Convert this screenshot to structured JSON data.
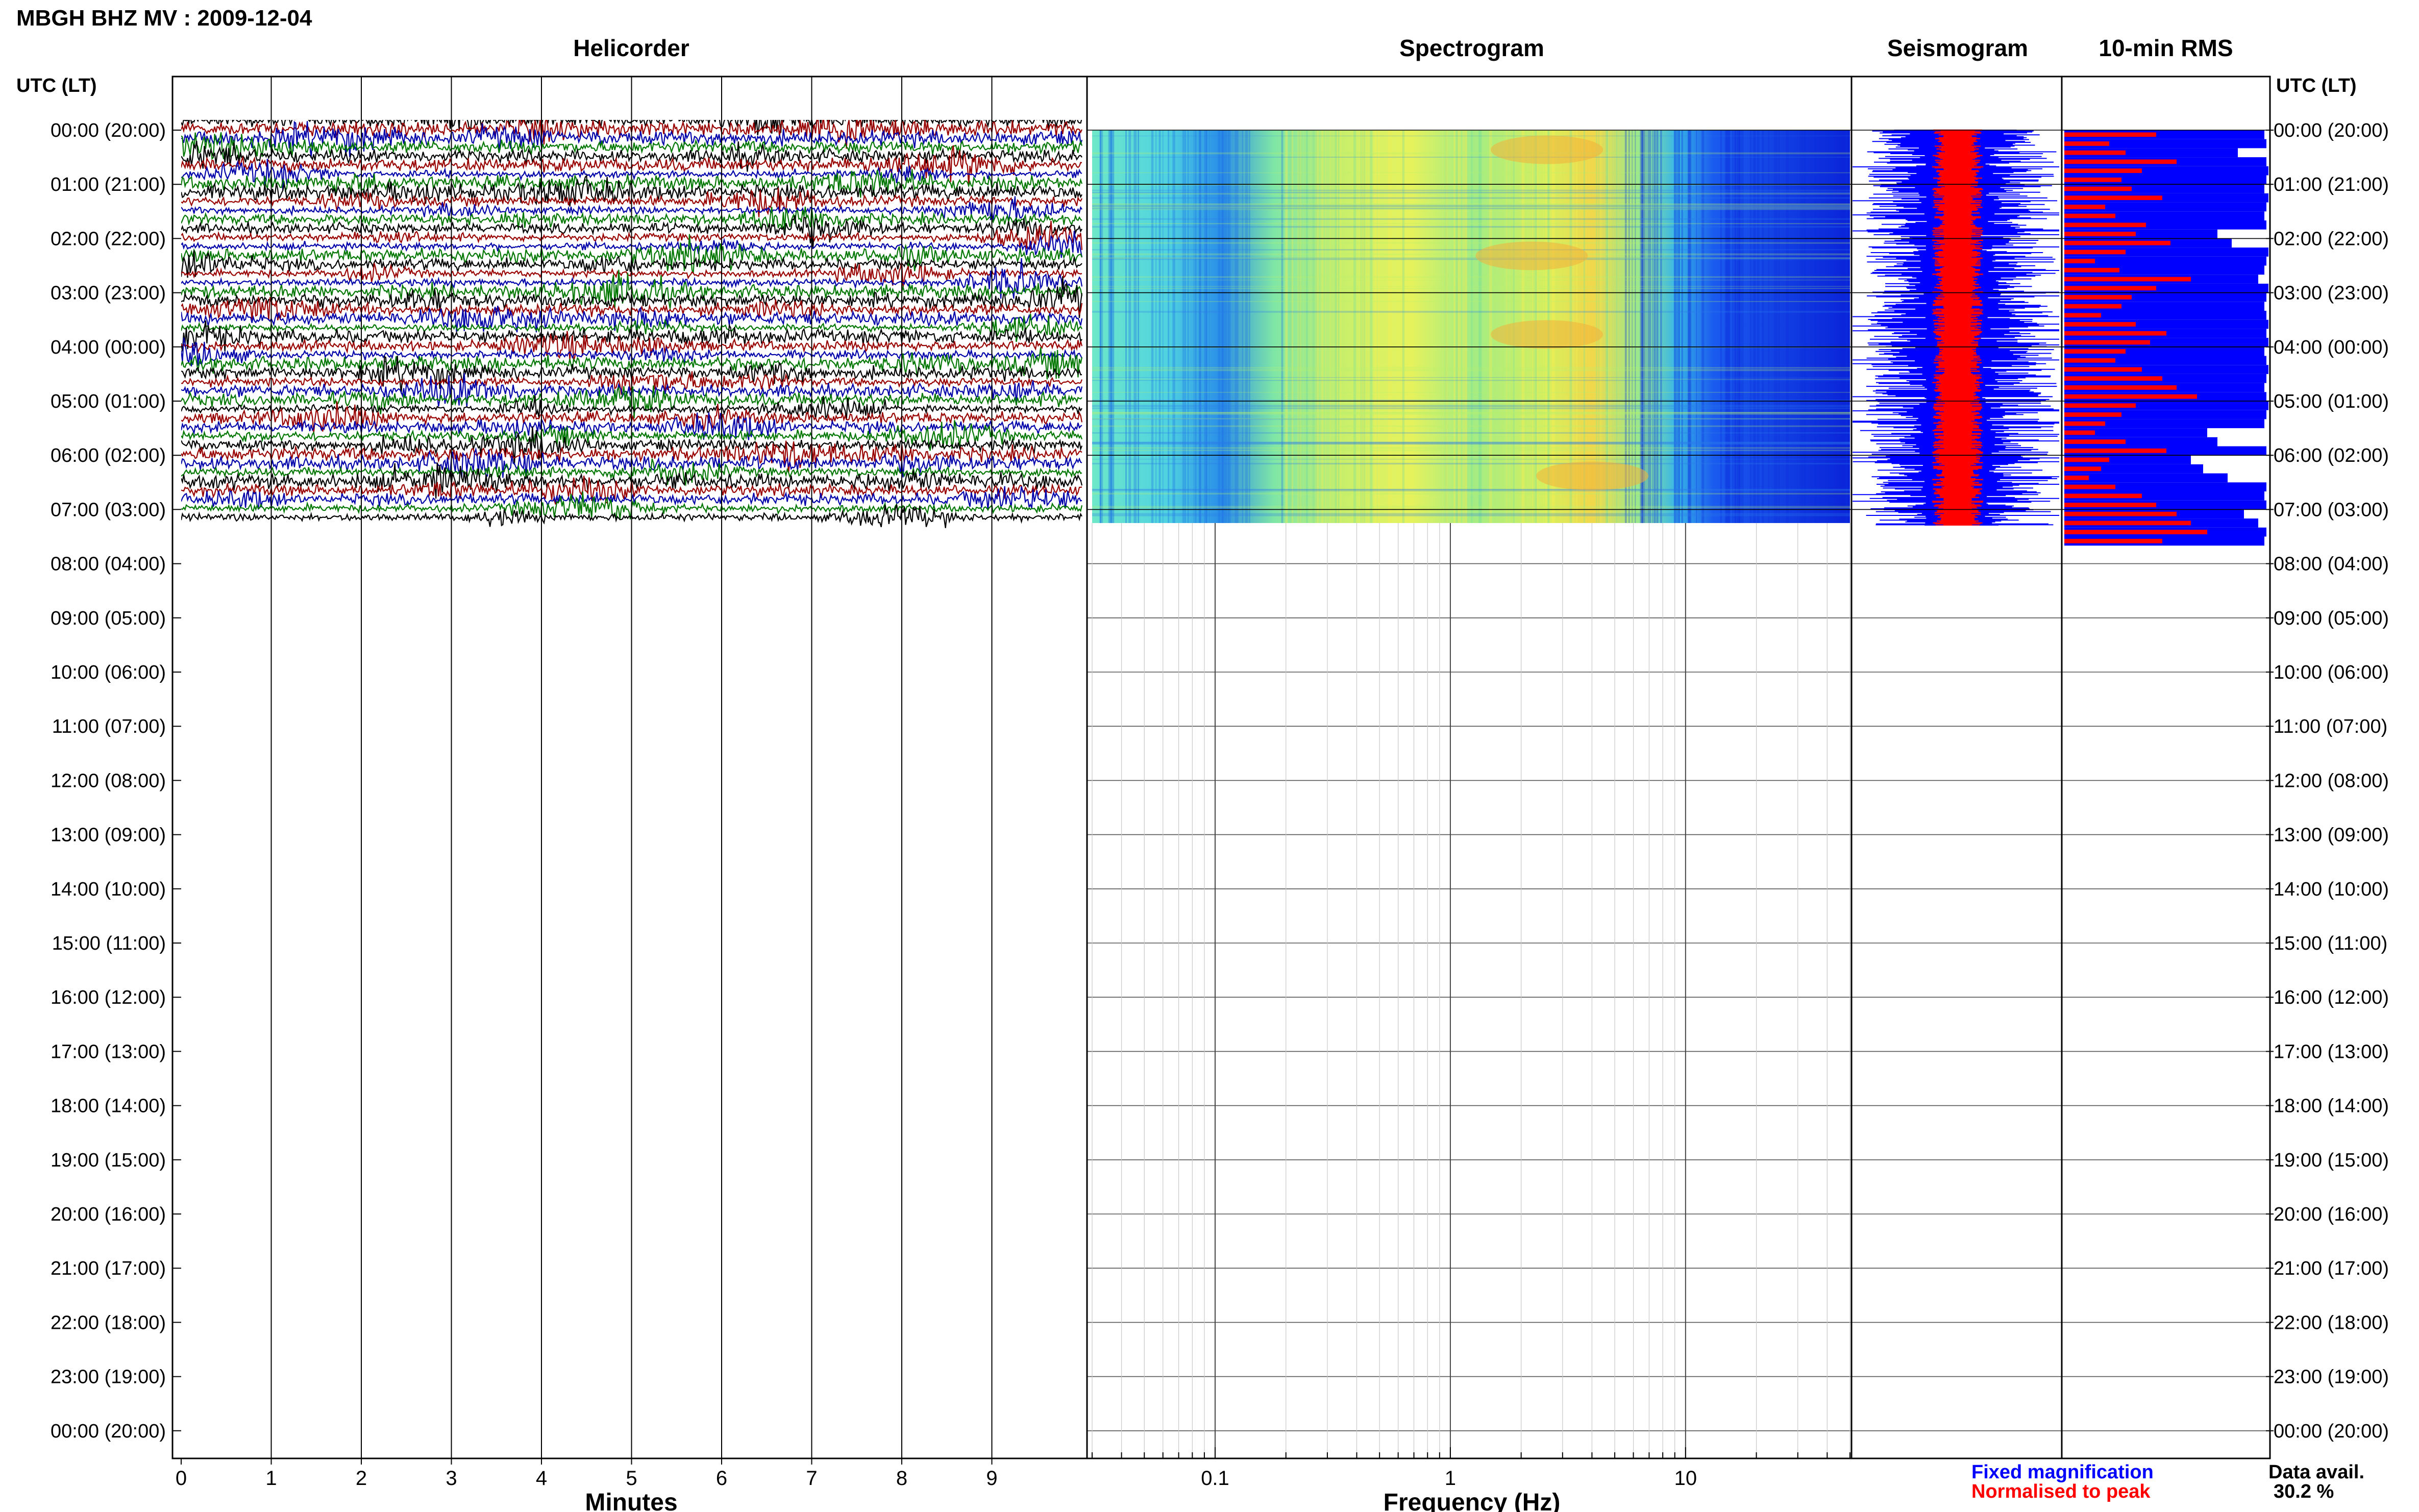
{
  "header": {
    "station": "MBGH BHZ MV : 2009-12-04"
  },
  "panels": {
    "helicorder": "Helicorder",
    "spectrogram": "Spectrogram",
    "seismogram": "Seismogram",
    "rms": "10-min RMS"
  },
  "axis": {
    "left_label": "UTC (LT)",
    "right_label": "UTC (LT)",
    "minutes_label": "Minutes",
    "frequency_label": "Frequency (Hz)"
  },
  "legend": {
    "fixed": "Fixed magnification",
    "normalised": "Normalised to peak",
    "fixed_color": "#0000ff",
    "normalised_color": "#ff0000"
  },
  "data_avail": {
    "label": "Data avail.",
    "value": "30.2 %"
  },
  "chart_data": {
    "type": "helicorder-composite",
    "date": "2009-12-04",
    "hour_labels": [
      "00:00 (20:00)",
      "01:00 (21:00)",
      "02:00 (22:00)",
      "03:00 (23:00)",
      "04:00 (00:00)",
      "05:00 (01:00)",
      "06:00 (02:00)",
      "07:00 (03:00)",
      "08:00 (04:00)",
      "09:00 (05:00)",
      "10:00 (06:00)",
      "11:00 (07:00)",
      "12:00 (08:00)",
      "13:00 (09:00)",
      "14:00 (10:00)",
      "15:00 (11:00)",
      "16:00 (12:00)",
      "17:00 (13:00)",
      "18:00 (14:00)",
      "19:00 (15:00)",
      "20:00 (16:00)",
      "21:00 (17:00)",
      "22:00 (18:00)",
      "23:00 (19:00)",
      "00:00 (20:00)"
    ],
    "helicorder": {
      "xlabel": "Minutes",
      "x_ticks": [
        "0",
        "1",
        "2",
        "3",
        "4",
        "5",
        "6",
        "7",
        "8",
        "9"
      ],
      "xlim": [
        0,
        10
      ],
      "line_colors": [
        "#000000",
        "#990000",
        "#0000aa",
        "#007700"
      ],
      "data_until_hour": 7.5
    },
    "spectrogram": {
      "xlabel": "Frequency (Hz)",
      "x_scale": "log",
      "xlim": [
        0.03,
        50
      ],
      "x_ticks": [
        "0.1",
        "1",
        "10"
      ],
      "data_until_hour": 7.25
    },
    "rms_10min": {
      "xlim": [
        0,
        1
      ],
      "fixed_color": "#0000ff",
      "normalised_color": "#ff0000",
      "fixed": [
        0.98,
        0.99,
        0.85,
        0.99,
        1.0,
        0.99,
        0.98,
        1.0,
        0.99,
        0.98,
        0.99,
        0.75,
        0.82,
        1.0,
        0.99,
        0.98,
        0.95,
        1.0,
        0.99,
        0.98,
        0.99,
        1.0,
        0.99,
        1.0,
        0.98,
        0.99,
        1.0,
        0.99,
        0.98,
        0.99,
        1.0,
        0.99,
        0.98,
        0.7,
        0.75,
        0.99,
        0.62,
        0.68,
        0.8,
        0.99,
        0.98,
        0.99,
        0.88,
        0.95,
        0.99,
        0.98
      ],
      "normalised": [
        0.45,
        0.22,
        0.3,
        0.55,
        0.38,
        0.28,
        0.33,
        0.48,
        0.2,
        0.25,
        0.4,
        0.35,
        0.52,
        0.3,
        0.15,
        0.27,
        0.62,
        0.45,
        0.33,
        0.28,
        0.18,
        0.35,
        0.5,
        0.42,
        0.3,
        0.25,
        0.38,
        0.48,
        0.55,
        0.65,
        0.35,
        0.28,
        0.2,
        0.15,
        0.3,
        0.5,
        0.22,
        0.18,
        0.12,
        0.25,
        0.38,
        0.45,
        0.55,
        0.62,
        0.7,
        0.48
      ]
    },
    "data_available_percent": 30.2
  }
}
